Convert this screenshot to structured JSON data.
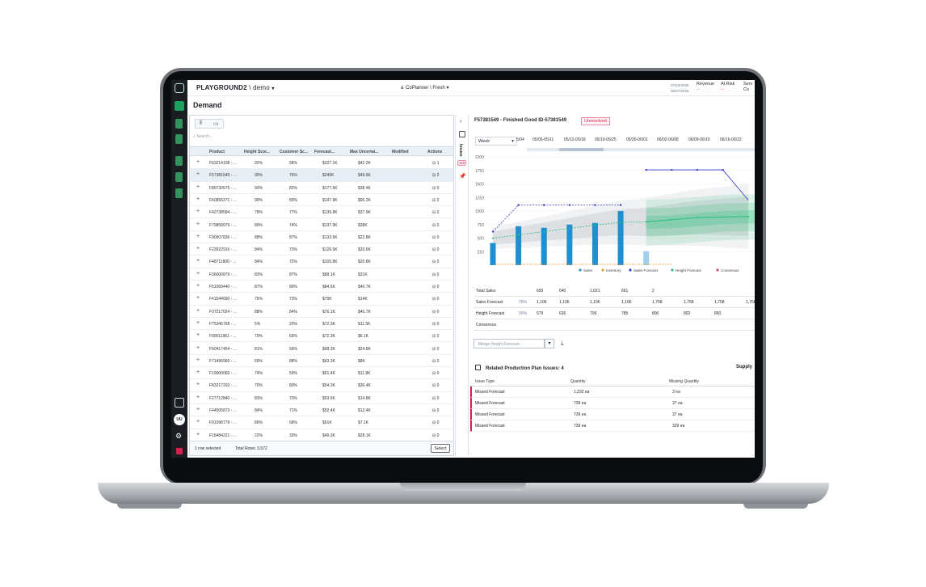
{
  "app": {
    "brand": "PLAYGROUND2",
    "workspace": "demo",
    "planner": "CoPlanner \\ Fresh",
    "dates": [
      "07/23/2025",
      "08/27/2025"
    ],
    "kpis": [
      {
        "label": "Revenue",
        "value": "--"
      },
      {
        "label": "At Risk",
        "value": "--"
      },
      {
        "label": "Serv",
        "value": "Co"
      }
    ],
    "page_title": "Demand",
    "avatar": "UU"
  },
  "grid": {
    "search_placeholder": "Search...",
    "columns": [
      "Product",
      "Height Scor...",
      "Customer Sc...",
      "Forecast...",
      "Max Uncertai...",
      "Modified",
      "Actions"
    ],
    "rows": [
      [
        "F63214108 - ...",
        "92%",
        "58%",
        "$327.1K",
        "$42.2K",
        "1"
      ],
      [
        "F57381549 - ...",
        "90%",
        "76%",
        "$240K",
        "$49.6K",
        "2"
      ],
      [
        "F89730575 - ...",
        "93%",
        "82%",
        "$177.5K",
        "$38.4K",
        "0"
      ],
      [
        "F60855271 - ...",
        "90%",
        "89%",
        "$147.9K",
        "$96.2K",
        "0"
      ],
      [
        "F42738584 - ...",
        "78%",
        "77%",
        "$139.8K",
        "$37.9K",
        "0"
      ],
      [
        "F79858979 - ...",
        "89%",
        "74%",
        "$137.9K",
        "$38K",
        "0"
      ],
      [
        "F90507836 - ...",
        "88%",
        "87%",
        "$133.5K",
        "$22.8K",
        "0"
      ],
      [
        "F23522916 - ...",
        "84%",
        "73%",
        "$126.5K",
        "$33.6K",
        "0"
      ],
      [
        "F48711800 - ...",
        "84%",
        "72%",
        "$105.8K",
        "$20.8K",
        "0"
      ],
      [
        "F36000979 - ...",
        "83%",
        "87%",
        "$88.1K",
        "$31K",
        "0"
      ],
      [
        "F51069440 - ...",
        "87%",
        "89%",
        "$84.5K",
        "$40.7K",
        "0"
      ],
      [
        "F41544590 - ...",
        "75%",
        "73%",
        "$79K",
        "$14K",
        "0"
      ],
      [
        "F37217024 - ...",
        "88%",
        "84%",
        "$76.1K",
        "$45.7K",
        "0"
      ],
      [
        "F75346768 - ...",
        "5%",
        "20%",
        "$72.3K",
        "$11.5K",
        "0"
      ],
      [
        "F99011961 - ...",
        "70%",
        "65%",
        "$72.3K",
        "$6.1K",
        "0"
      ],
      [
        "F50417464 - ...",
        "81%",
        "56%",
        "$68.3K",
        "$24.8K",
        "0"
      ],
      [
        "F71496960 - ...",
        "69%",
        "88%",
        "$63.3K",
        "$8K",
        "0"
      ],
      [
        "F19000060 - ...",
        "74%",
        "59%",
        "$61.4K",
        "$11.8K",
        "0"
      ],
      [
        "F83217293 - ...",
        "70%",
        "80%",
        "$54.3K",
        "$36.4K",
        "0"
      ],
      [
        "F27712840 - ...",
        "83%",
        "73%",
        "$53.6K",
        "$14.8K",
        "0"
      ],
      [
        "F44505873 - ...",
        "84%",
        "71%",
        "$52.4K",
        "$12.4K",
        "0"
      ],
      [
        "F91098778 - ...",
        "86%",
        "68%",
        "$51K",
        "$7.1K",
        "0"
      ],
      [
        "F18484221 - ...",
        "22%",
        "33%",
        "$49.3K",
        "$28.1K",
        "0"
      ]
    ],
    "selected_row": 1,
    "footer_selected": "1 row selected",
    "footer_total": "Total Rows: 3,572",
    "select_button": "Select"
  },
  "issues_rail": {
    "label": "Issues",
    "badge": "116"
  },
  "detail": {
    "title": "F57381549 - Finished Good ID-57381549",
    "status": "Unresolved",
    "granularity": "Week",
    "weeks": [
      "5/04",
      "05/05-05/11",
      "05/12-05/18",
      "05/19-05/25",
      "05/26-06/01",
      "06/02-06/08",
      "06/09-06/15",
      "06/16-06/22"
    ],
    "forecast_rows": [
      {
        "label": "Total Sales",
        "pct": "",
        "values": [
          "693",
          "640",
          "1,021",
          "661",
          "2",
          "",
          "",
          ""
        ]
      },
      {
        "label": "Sales Forecast",
        "pct": "76%",
        "values": [
          "1,106",
          "1,106",
          "1,106",
          "1,106",
          "1,758",
          "1,758",
          "1,758",
          "1,758"
        ]
      },
      {
        "label": "Height Forecast",
        "pct": "90%",
        "values": [
          "579",
          "636",
          "709",
          "785",
          "800",
          "892",
          "860",
          ""
        ]
      },
      {
        "label": "Consensus",
        "pct": "",
        "values": [
          "",
          "",
          "",
          "",
          "",
          "",
          "",
          ""
        ]
      }
    ],
    "merge_label": "Merge Height Forecast",
    "related_title": "Related Production Plan Issues: 4",
    "supply_label": "Supply",
    "issues_columns": [
      "Issue Type",
      "Quantity",
      "Missing Quantity"
    ],
    "issues": [
      [
        "Missed Forecast",
        "1,232 ea",
        "3 ea"
      ],
      [
        "Missed Forecast",
        "739 ea",
        "37 ea"
      ],
      [
        "Missed Forecast",
        "739 ea",
        "37 ea"
      ],
      [
        "Missed Forecast",
        "739 ea",
        "329 ea"
      ]
    ]
  },
  "chart_data": {
    "type": "bar",
    "y_ticks": [
      "2000",
      "1750",
      "1500",
      "1250",
      "1000",
      "750",
      "500",
      "250"
    ],
    "ylim": [
      0,
      2000
    ],
    "legend_position": "bottom",
    "series": [
      {
        "name": "Sales",
        "color": "#1e90d0",
        "values": [
          410,
          720,
          690,
          750,
          780,
          1000,
          260,
          null,
          null,
          null,
          null
        ]
      },
      {
        "name": "Inventory",
        "color": "#f0a030",
        "values": [
          0,
          0,
          0,
          0,
          0,
          0,
          0,
          0,
          null,
          null,
          null
        ]
      },
      {
        "name": "Sales Forecast",
        "color": "#3a3ad0",
        "values": [
          620,
          1110,
          1110,
          1110,
          1110,
          1110,
          1760,
          1760,
          1760,
          1760,
          1200
        ]
      },
      {
        "name": "Height Forecast",
        "color": "#2cbf7a",
        "values": [
          500,
          560,
          620,
          680,
          740,
          790,
          800,
          840,
          880,
          890,
          900
        ]
      },
      {
        "name": "Consensus",
        "color": "#e04a6a",
        "values": []
      }
    ]
  }
}
